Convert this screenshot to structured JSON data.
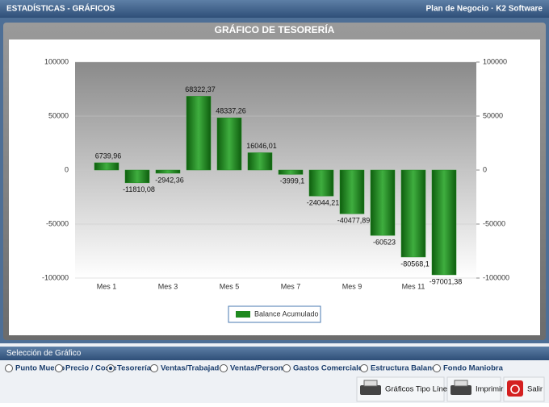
{
  "header": {
    "title": "ESTADÍSTICAS - GRÁFICOS",
    "app": "Plan de Negocio · K2 Software"
  },
  "chart_data": {
    "type": "bar",
    "title": "GRÁFICO DE TESORERÍA",
    "categories": [
      "Mes 1",
      null,
      "Mes 3",
      null,
      "Mes 5",
      null,
      "Mes 7",
      null,
      "Mes 9",
      null,
      "Mes 11",
      null
    ],
    "series": [
      {
        "name": "Balance Acumulado",
        "color": "#1f8a1f",
        "values": [
          6739.96,
          -11810.08,
          -2942.36,
          68322.37,
          48337.26,
          16046.01,
          -3999.1,
          -24044.21,
          -40477.89,
          -60523,
          -80568.1,
          -97001.38
        ],
        "value_labels": [
          "6739,96",
          "-11810,08",
          "-2942,36",
          "68322,37",
          "48337,26",
          "16046,01",
          "-3999,1",
          "-24044,21",
          "-40477,89",
          "-60523",
          "-80568,1",
          "-97001,38"
        ]
      }
    ],
    "ylim": [
      -100000,
      100000
    ],
    "yticks": [
      -100000,
      -50000,
      0,
      50000,
      100000
    ],
    "y2lim": [
      -100000,
      100000
    ],
    "y2ticks": [
      -100000,
      -50000,
      0,
      50000,
      100000
    ]
  },
  "selector": {
    "title": "Selección de Gráfico",
    "options": [
      "Punto Muerto",
      "Precio / Coste",
      "Tesorería",
      "Ventas/Trabajador",
      "Ventas/Personal",
      "Gastos Comerciales",
      "Estructura Balance",
      "Fondo Maniobra"
    ],
    "selected": 2
  },
  "buttons": [
    "Gráficos Tipo Línea",
    "Imprimir",
    "Salir"
  ]
}
